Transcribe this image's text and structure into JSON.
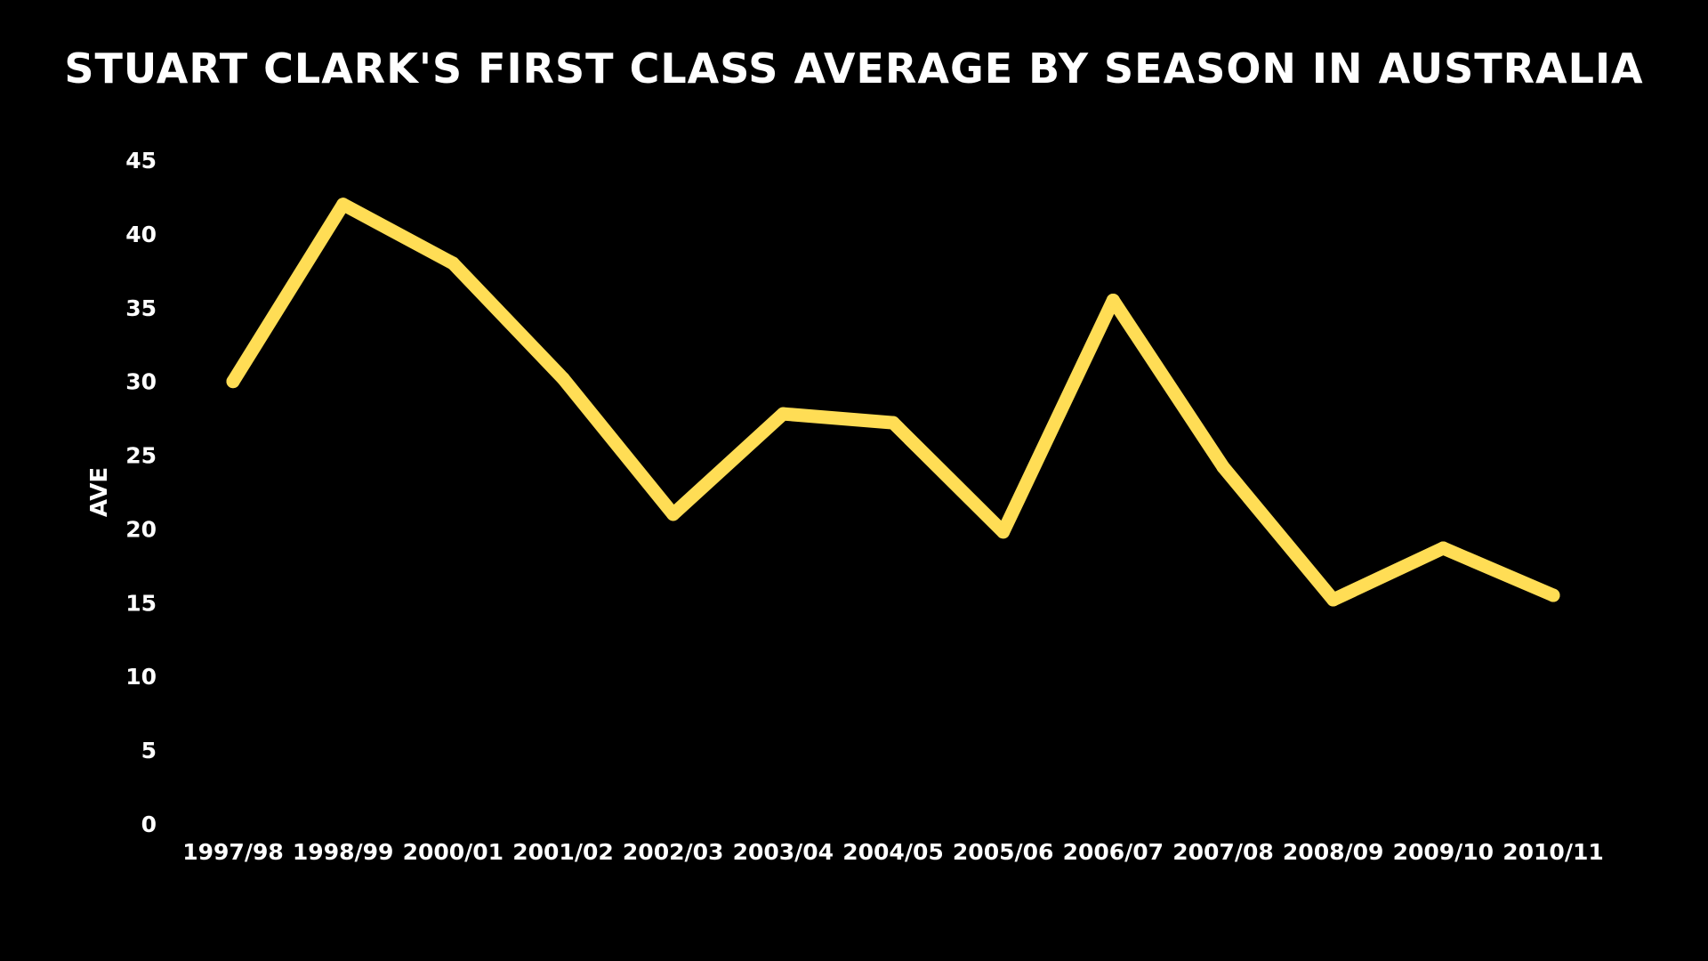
{
  "chart_data": {
    "type": "line",
    "title": "Stuart Clark's First Class Average by Season in Australia",
    "xlabel": "",
    "ylabel": "AVE",
    "ylim": [
      0,
      45
    ],
    "yticks": [
      0,
      5,
      10,
      15,
      20,
      25,
      30,
      35,
      40,
      45
    ],
    "grid": false,
    "legend": "none",
    "categories": [
      "1997/98",
      "1998/99",
      "2000/01",
      "2001/02",
      "2002/03",
      "2003/04",
      "2004/05",
      "2005/06",
      "2006/07",
      "2007/08",
      "2008/09",
      "2009/10",
      "2010/11"
    ],
    "series": [
      {
        "values": [
          30,
          42,
          38,
          30.2,
          21,
          27.8,
          27.2,
          19.8,
          35.5,
          24.2,
          15.2,
          18.7,
          15.5
        ]
      }
    ]
  },
  "colors": {
    "background": "#000000",
    "text": "#ffffff",
    "line": "#ffdd55"
  }
}
